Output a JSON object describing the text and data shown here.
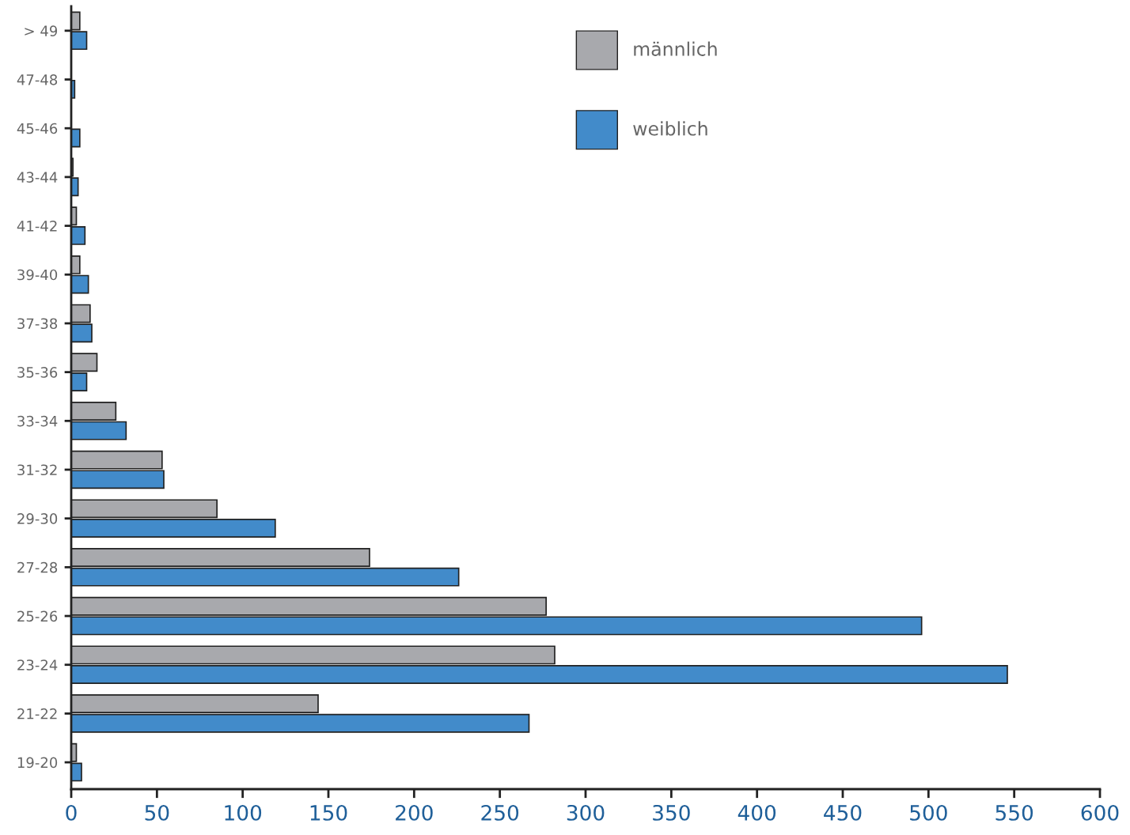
{
  "chart_data": {
    "type": "bar",
    "orientation": "horizontal",
    "categories": [
      "> 49",
      "47-48",
      "45-46",
      "43-44",
      "41-42",
      "39-40",
      "37-38",
      "35-36",
      "33-34",
      "31-32",
      "29-30",
      "27-28",
      "25-26",
      "23-24",
      "21-22",
      "19-20"
    ],
    "series": [
      {
        "name": "männlich",
        "color": "#a8a9ad",
        "values": [
          5,
          0,
          0,
          1,
          3,
          5,
          11,
          15,
          26,
          53,
          85,
          174,
          277,
          282,
          144,
          3
        ]
      },
      {
        "name": "weiblich",
        "color": "#428bca",
        "values": [
          9,
          2,
          5,
          4,
          8,
          10,
          12,
          9,
          32,
          54,
          119,
          226,
          496,
          546,
          267,
          6
        ]
      }
    ],
    "xlim": [
      0,
      600
    ],
    "xticks": [
      0,
      50,
      100,
      150,
      200,
      250,
      300,
      350,
      400,
      450,
      500,
      550,
      600
    ],
    "grid": false,
    "legend": "top"
  }
}
